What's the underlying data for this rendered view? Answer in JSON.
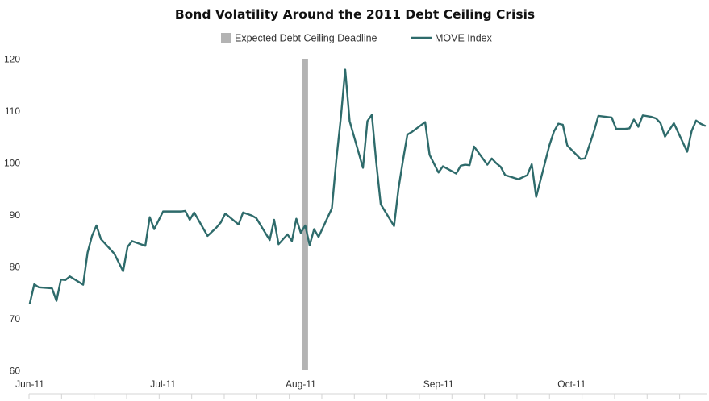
{
  "chart_data": {
    "type": "line",
    "title": "Bond Volatility Around the 2011 Debt Ceiling Crisis",
    "xlabel": "",
    "ylabel": "",
    "ylim": [
      60,
      120
    ],
    "y_ticks": [
      60,
      70,
      80,
      90,
      100,
      110,
      120
    ],
    "x_tick_labels": [
      {
        "label": "Jun-11",
        "date": "2011-06-01"
      },
      {
        "label": "Jul-11",
        "date": "2011-07-01"
      },
      {
        "label": "Aug-11",
        "date": "2011-08-01"
      },
      {
        "label": "Sep-11",
        "date": "2011-09-01"
      },
      {
        "label": "Oct-11",
        "date": "2011-10-01"
      }
    ],
    "xlim": [
      "2011-06-01",
      "2011-10-31"
    ],
    "grid": false,
    "legend_position": "top-center",
    "legend": [
      {
        "name": "Expected Debt Ceiling Deadline",
        "type": "bar",
        "color": "#b3b3b3"
      },
      {
        "name": "MOVE Index",
        "type": "line",
        "color": "#2e6b6b"
      }
    ],
    "deadline": {
      "name": "Expected Debt Ceiling Deadline",
      "date": "2011-08-02"
    },
    "series": [
      {
        "name": "MOVE Index",
        "color": "#2e6b6b",
        "points": [
          [
            "2011-06-01",
            72.9
          ],
          [
            "2011-06-02",
            76.6
          ],
          [
            "2011-06-03",
            76.0
          ],
          [
            "2011-06-06",
            75.8
          ],
          [
            "2011-06-07",
            73.4
          ],
          [
            "2011-06-08",
            77.5
          ],
          [
            "2011-06-09",
            77.4
          ],
          [
            "2011-06-10",
            78.1
          ],
          [
            "2011-06-13",
            76.5
          ],
          [
            "2011-06-14",
            82.7
          ],
          [
            "2011-06-15",
            85.9
          ],
          [
            "2011-06-16",
            87.9
          ],
          [
            "2011-06-17",
            85.3
          ],
          [
            "2011-06-20",
            82.5
          ],
          [
            "2011-06-22",
            79.1
          ],
          [
            "2011-06-23",
            83.8
          ],
          [
            "2011-06-24",
            84.9
          ],
          [
            "2011-06-27",
            84.0
          ],
          [
            "2011-06-28",
            89.5
          ],
          [
            "2011-06-29",
            87.2
          ],
          [
            "2011-07-01",
            90.6
          ],
          [
            "2011-07-05",
            90.6
          ],
          [
            "2011-07-06",
            90.7
          ],
          [
            "2011-07-07",
            89.0
          ],
          [
            "2011-07-08",
            90.4
          ],
          [
            "2011-07-11",
            85.9
          ],
          [
            "2011-07-13",
            87.5
          ],
          [
            "2011-07-14",
            88.5
          ],
          [
            "2011-07-15",
            90.2
          ],
          [
            "2011-07-18",
            88.1
          ],
          [
            "2011-07-19",
            90.4
          ],
          [
            "2011-07-21",
            89.8
          ],
          [
            "2011-07-22",
            89.3
          ],
          [
            "2011-07-25",
            85.1
          ],
          [
            "2011-07-26",
            89.0
          ],
          [
            "2011-07-27",
            84.3
          ],
          [
            "2011-07-29",
            86.2
          ],
          [
            "2011-07-30",
            84.9
          ],
          [
            "2011-07-31",
            89.2
          ],
          [
            "2011-08-01",
            86.5
          ],
          [
            "2011-08-02",
            87.9
          ],
          [
            "2011-08-03",
            84.1
          ],
          [
            "2011-08-04",
            87.2
          ],
          [
            "2011-08-05",
            85.7
          ],
          [
            "2011-08-08",
            91.2
          ],
          [
            "2011-08-09",
            100.5
          ],
          [
            "2011-08-10",
            108.5
          ],
          [
            "2011-08-11",
            117.9
          ],
          [
            "2011-08-12",
            108.0
          ],
          [
            "2011-08-15",
            99.0
          ],
          [
            "2011-08-16",
            108.0
          ],
          [
            "2011-08-17",
            109.2
          ],
          [
            "2011-08-18",
            100.0
          ],
          [
            "2011-08-19",
            92.0
          ],
          [
            "2011-08-22",
            87.8
          ],
          [
            "2011-08-23",
            95.0
          ],
          [
            "2011-08-24",
            100.4
          ],
          [
            "2011-08-25",
            105.4
          ],
          [
            "2011-08-26",
            105.9
          ],
          [
            "2011-08-29",
            107.8
          ],
          [
            "2011-08-30",
            101.5
          ],
          [
            "2011-09-01",
            98.1
          ],
          [
            "2011-09-02",
            99.3
          ],
          [
            "2011-09-05",
            97.9
          ],
          [
            "2011-09-06",
            99.4
          ],
          [
            "2011-09-07",
            99.6
          ],
          [
            "2011-09-08",
            99.5
          ],
          [
            "2011-09-09",
            103.1
          ],
          [
            "2011-09-12",
            99.6
          ],
          [
            "2011-09-13",
            100.8
          ],
          [
            "2011-09-14",
            99.9
          ],
          [
            "2011-09-15",
            99.2
          ],
          [
            "2011-09-16",
            97.6
          ],
          [
            "2011-09-19",
            96.8
          ],
          [
            "2011-09-20",
            97.2
          ],
          [
            "2011-09-21",
            97.6
          ],
          [
            "2011-09-22",
            99.7
          ],
          [
            "2011-09-23",
            93.4
          ],
          [
            "2011-09-26",
            103.4
          ],
          [
            "2011-09-27",
            106.0
          ],
          [
            "2011-09-28",
            107.5
          ],
          [
            "2011-09-29",
            107.3
          ],
          [
            "2011-09-30",
            103.3
          ],
          [
            "2011-10-03",
            100.7
          ],
          [
            "2011-10-04",
            100.8
          ],
          [
            "2011-10-06",
            106.0
          ],
          [
            "2011-10-07",
            109.0
          ],
          [
            "2011-10-10",
            108.7
          ],
          [
            "2011-10-11",
            106.5
          ],
          [
            "2011-10-13",
            106.5
          ],
          [
            "2011-10-14",
            106.6
          ],
          [
            "2011-10-15",
            108.3
          ],
          [
            "2011-10-16",
            106.9
          ],
          [
            "2011-10-17",
            109.1
          ],
          [
            "2011-10-19",
            108.8
          ],
          [
            "2011-10-20",
            108.5
          ],
          [
            "2011-10-21",
            107.6
          ],
          [
            "2011-10-22",
            105.0
          ],
          [
            "2011-10-24",
            107.6
          ],
          [
            "2011-10-27",
            102.1
          ],
          [
            "2011-10-28",
            106.1
          ],
          [
            "2011-10-29",
            108.1
          ],
          [
            "2011-10-30",
            107.5
          ],
          [
            "2011-10-31",
            107.1
          ]
        ]
      }
    ]
  }
}
